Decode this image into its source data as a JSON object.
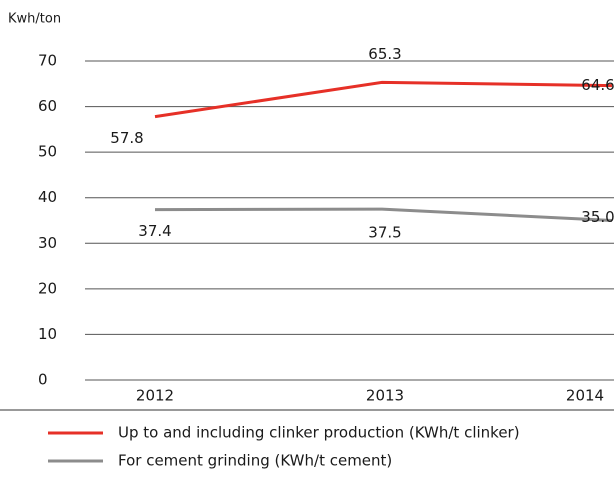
{
  "chart_data": {
    "type": "line",
    "y_axis_label": "Kwh/ton",
    "categories": [
      "2012",
      "2013",
      "2014"
    ],
    "series": [
      {
        "name": "Up to and including clinker production (KWh/t clinker)",
        "color": "#e63027",
        "values": [
          57.8,
          65.3,
          64.6
        ]
      },
      {
        "name": "For cement grinding (KWh/t cement)",
        "color": "#8c8c8c",
        "values": [
          37.4,
          37.5,
          35
        ],
        "value_labels": [
          "37.4",
          "37.5",
          "35.0"
        ]
      }
    ],
    "ylim": [
      0,
      70
    ],
    "yticks": [
      0,
      10,
      20,
      30,
      40,
      50,
      60,
      70
    ],
    "grid": true
  }
}
